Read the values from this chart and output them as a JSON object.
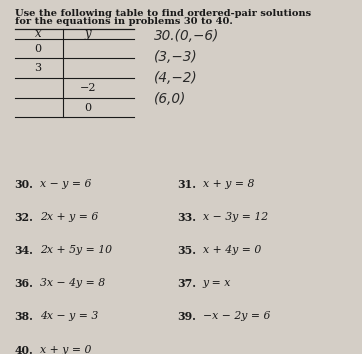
{
  "bg_color": "#d4cec6",
  "title_line1": "Use the following table to find ordered-pair solutions",
  "title_line2": "for the equations in problems 30 to 40.",
  "table_headers": [
    "x",
    "y"
  ],
  "table_rows": [
    [
      "0",
      ""
    ],
    [
      "3",
      ""
    ],
    [
      "",
      "−2"
    ],
    [
      "",
      "0"
    ]
  ],
  "handwritten_lines": [
    "30.(0,−6)",
    "(3,−3)",
    "(4,−2)",
    "(6,0)"
  ],
  "equations": [
    [
      "30.",
      "x − y = 6",
      "31.",
      "x + y = 8"
    ],
    [
      "32.",
      "2x + y = 6",
      "33.",
      "x − 3y = 12"
    ],
    [
      "34.",
      "2x + 5y = 10",
      "35.",
      "x + 4y = 0"
    ],
    [
      "36.",
      "3x − 4y = 8",
      "37.",
      "y = x"
    ],
    [
      "38.",
      "4x − y = 3",
      "39.",
      "−x − 2y = 6"
    ],
    [
      "40.",
      "x + y = 0",
      "",
      ""
    ]
  ],
  "text_color": "#1a1a1a",
  "handwritten_color": "#2a2a2a"
}
